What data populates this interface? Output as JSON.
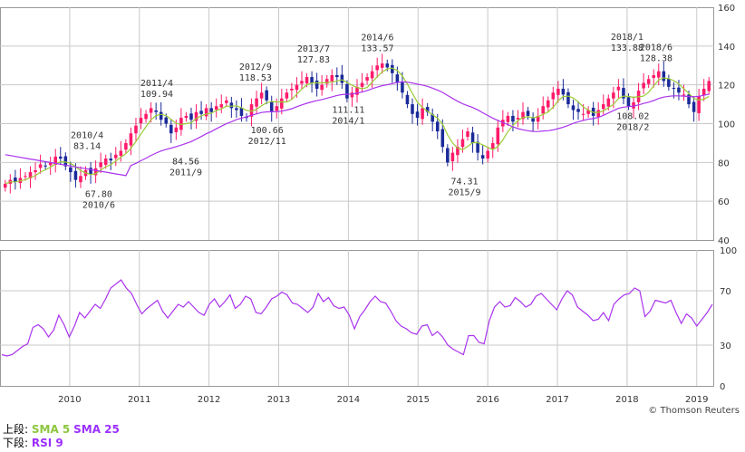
{
  "legend": {
    "upper_prefix": "上段:",
    "upper_sma5": "SMA 5",
    "upper_sma25": "SMA 25",
    "lower_prefix": "下段:",
    "lower_rsi": "RSI 9"
  },
  "credit": "© Thomson Reuters",
  "colors": {
    "up": "#ff1a6a",
    "down": "#1a2a99",
    "sma5": "#99cc33",
    "sma25": "#aa33ee",
    "rsi": "#aa33ee",
    "grid": "#999999"
  },
  "chart_data": [
    {
      "type": "candlestick",
      "x_ticks": [
        "2010",
        "2011",
        "2012",
        "2013",
        "2014",
        "2015",
        "2016",
        "2017",
        "2018",
        "2019"
      ],
      "x_range": [
        2009.0,
        2019.25
      ],
      "y_ticks": [
        40,
        60,
        80,
        100,
        120,
        140,
        160
      ],
      "ylim": [
        40,
        160
      ],
      "series_sma5": "SMA 5",
      "series_sma25": "SMA 25",
      "annotations": [
        {
          "date": "2010/4",
          "value": "83.14"
        },
        {
          "date": "2010/6",
          "value": "67.80"
        },
        {
          "date": "2011/4",
          "value": "109.94"
        },
        {
          "date": "2011/9",
          "value": "84.56"
        },
        {
          "date": "2012/9",
          "value": "118.53"
        },
        {
          "date": "2012/11",
          "value": "100.66"
        },
        {
          "date": "2013/7",
          "value": "127.83"
        },
        {
          "date": "2014/1",
          "value": "111.11"
        },
        {
          "date": "2014/6",
          "value": "133.57"
        },
        {
          "date": "2015/9",
          "value": "74.31"
        },
        {
          "date": "2018/1",
          "value": "133.88"
        },
        {
          "date": "2018/2",
          "value": "108.02"
        },
        {
          "date": "2018/6",
          "value": "128.38"
        }
      ],
      "close": [
        69,
        71,
        70,
        72,
        73,
        75,
        76,
        79,
        78,
        80,
        83,
        82,
        78,
        75,
        71,
        73,
        76,
        74,
        77,
        80,
        82,
        81,
        84,
        86,
        90,
        95,
        99,
        103,
        105,
        108,
        106,
        102,
        100,
        95,
        98,
        103,
        104,
        102,
        106,
        105,
        108,
        106,
        109,
        110,
        112,
        108,
        107,
        104,
        103,
        110,
        113,
        116,
        112,
        106,
        109,
        113,
        116,
        118,
        120,
        122,
        124,
        121,
        118,
        120,
        123,
        125,
        124,
        121,
        113,
        116,
        119,
        121,
        124,
        127,
        130,
        131,
        129,
        126,
        121,
        116,
        110,
        105,
        103,
        108,
        106,
        101,
        96,
        88,
        80,
        85,
        88,
        92,
        96,
        90,
        85,
        82,
        86,
        90,
        98,
        102,
        104,
        101,
        103,
        106,
        104,
        101,
        104,
        109,
        112,
        116,
        118,
        115,
        110,
        107,
        106,
        105,
        107,
        104,
        107,
        110,
        113,
        116,
        119,
        113,
        109,
        111,
        117,
        121,
        123,
        125,
        127,
        122,
        119,
        118,
        116,
        115,
        110,
        106,
        114,
        118,
        122
      ]
    },
    {
      "type": "line",
      "series_name": "RSI 9",
      "y_ticks": [
        0,
        30,
        70,
        100
      ],
      "ylim": [
        0,
        100
      ],
      "values": [
        23,
        22,
        23,
        26,
        29,
        31,
        43,
        45,
        42,
        36,
        41,
        52,
        45,
        36,
        44,
        54,
        50,
        55,
        60,
        57,
        64,
        72,
        75,
        78,
        72,
        68,
        60,
        53,
        57,
        60,
        63,
        55,
        50,
        55,
        60,
        58,
        62,
        58,
        54,
        52,
        60,
        64,
        58,
        62,
        67,
        57,
        60,
        66,
        64,
        54,
        53,
        58,
        64,
        66,
        69,
        67,
        61,
        60,
        57,
        54,
        58,
        68,
        62,
        65,
        59,
        57,
        58,
        52,
        42,
        51,
        56,
        62,
        66,
        62,
        61,
        55,
        48,
        44,
        42,
        39,
        38,
        44,
        45,
        37,
        40,
        36,
        30,
        27,
        25,
        23,
        37,
        37,
        32,
        31,
        48,
        58,
        62,
        58,
        59,
        65,
        62,
        58,
        60,
        66,
        68,
        64,
        60,
        56,
        64,
        70,
        67,
        58,
        55,
        52,
        48,
        49,
        54,
        48,
        60,
        64,
        67,
        68,
        72,
        70,
        51,
        55,
        63,
        62,
        61,
        63,
        54,
        46,
        53,
        50,
        44,
        49,
        54,
        60
      ]
    }
  ]
}
